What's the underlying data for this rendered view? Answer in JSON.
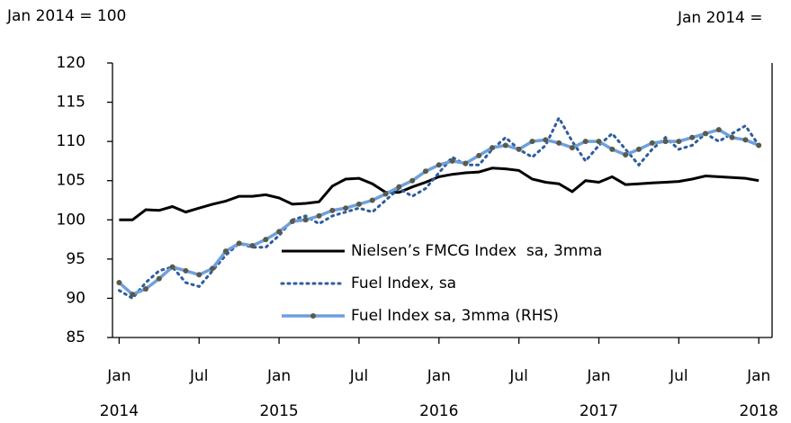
{
  "chart_data": {
    "type": "line",
    "y_axis_label": "Jan 2014 = 100",
    "y2_axis_label": "Jan 2014 =",
    "xlim": [
      -0.5,
      49
    ],
    "xticks": [
      {
        "value": 0,
        "label": "Jan"
      },
      {
        "value": 6,
        "label": "Jul"
      },
      {
        "value": 12,
        "label": "Jan"
      },
      {
        "value": 18,
        "label": "Jul"
      },
      {
        "value": 24,
        "label": "Jan"
      },
      {
        "value": 30,
        "label": "Jul"
      },
      {
        "value": 36,
        "label": "Jan"
      },
      {
        "value": 42,
        "label": "Jul"
      },
      {
        "value": 48,
        "label": "Jan"
      }
    ],
    "year_labels": [
      {
        "value": 0,
        "label": "2014"
      },
      {
        "value": 12,
        "label": "2015"
      },
      {
        "value": 24,
        "label": "2016"
      },
      {
        "value": 36,
        "label": "2017"
      },
      {
        "value": 48,
        "label": "2018"
      }
    ],
    "ylim": [
      85,
      120
    ],
    "yticks": [
      85,
      90,
      95,
      100,
      105,
      110,
      115,
      120
    ],
    "x": [
      0,
      1,
      2,
      3,
      4,
      5,
      6,
      7,
      8,
      9,
      10,
      11,
      12,
      13,
      14,
      15,
      16,
      17,
      18,
      19,
      20,
      21,
      22,
      23,
      24,
      25,
      26,
      27,
      28,
      29,
      30,
      31,
      32,
      33,
      34,
      35,
      36,
      37,
      38,
      39,
      40,
      41,
      42,
      43,
      44,
      45,
      46,
      47,
      48
    ],
    "series": [
      {
        "name": "Nielsen’s FMCG Index  sa, 3mma",
        "color": "#000000",
        "style": "solid",
        "values": [
          100,
          100,
          101.3,
          101.2,
          101.7,
          101.0,
          101.5,
          102,
          102.4,
          103,
          103,
          103.2,
          102.8,
          102,
          102.1,
          102.3,
          104.3,
          105.2,
          105.3,
          104.6,
          103.5,
          103.5,
          104.2,
          104.8,
          105.5,
          105.8,
          106,
          106.1,
          106.6,
          106.5,
          106.3,
          105.2,
          104.8,
          104.6,
          103.6,
          105,
          104.8,
          105.5,
          104.5,
          104.6,
          104.7,
          104.8,
          104.9,
          105.2,
          105.6,
          105.5,
          105.4,
          105.3,
          105
        ]
      },
      {
        "name": "Fuel Index, sa",
        "color": "#2e5c9e",
        "style": "dotted",
        "values": [
          91,
          90,
          92,
          93.5,
          94,
          92,
          91.5,
          93.5,
          95.5,
          97,
          96.5,
          96.5,
          98,
          100,
          100.5,
          99.5,
          100.5,
          101,
          101.5,
          101,
          102.5,
          104,
          103,
          104,
          106,
          108,
          107,
          107,
          109,
          110.5,
          109,
          108,
          109.5,
          113,
          110,
          107.5,
          109.5,
          111,
          109,
          107,
          109,
          110.5,
          109,
          109.5,
          111,
          110,
          111,
          112,
          109.5
        ]
      },
      {
        "name": "Fuel Index sa, 3mma (RHS)",
        "color": "#6fa0dc",
        "marker_color": "#5a5a4a",
        "style": "solid-marker",
        "values": [
          92,
          90.5,
          91.2,
          92.5,
          94,
          93.5,
          93,
          93.8,
          96,
          97,
          96.7,
          97.5,
          98.5,
          99.8,
          100,
          100.5,
          101.2,
          101.5,
          102,
          102.5,
          103.3,
          104.2,
          105,
          106.2,
          107,
          107.5,
          107.2,
          108.2,
          109.2,
          109.5,
          109,
          110,
          110.2,
          109.8,
          109.2,
          110,
          110,
          109,
          108.3,
          109,
          109.8,
          110,
          110,
          110.5,
          111,
          111.5,
          110.5,
          110.2,
          109.5
        ]
      }
    ]
  }
}
